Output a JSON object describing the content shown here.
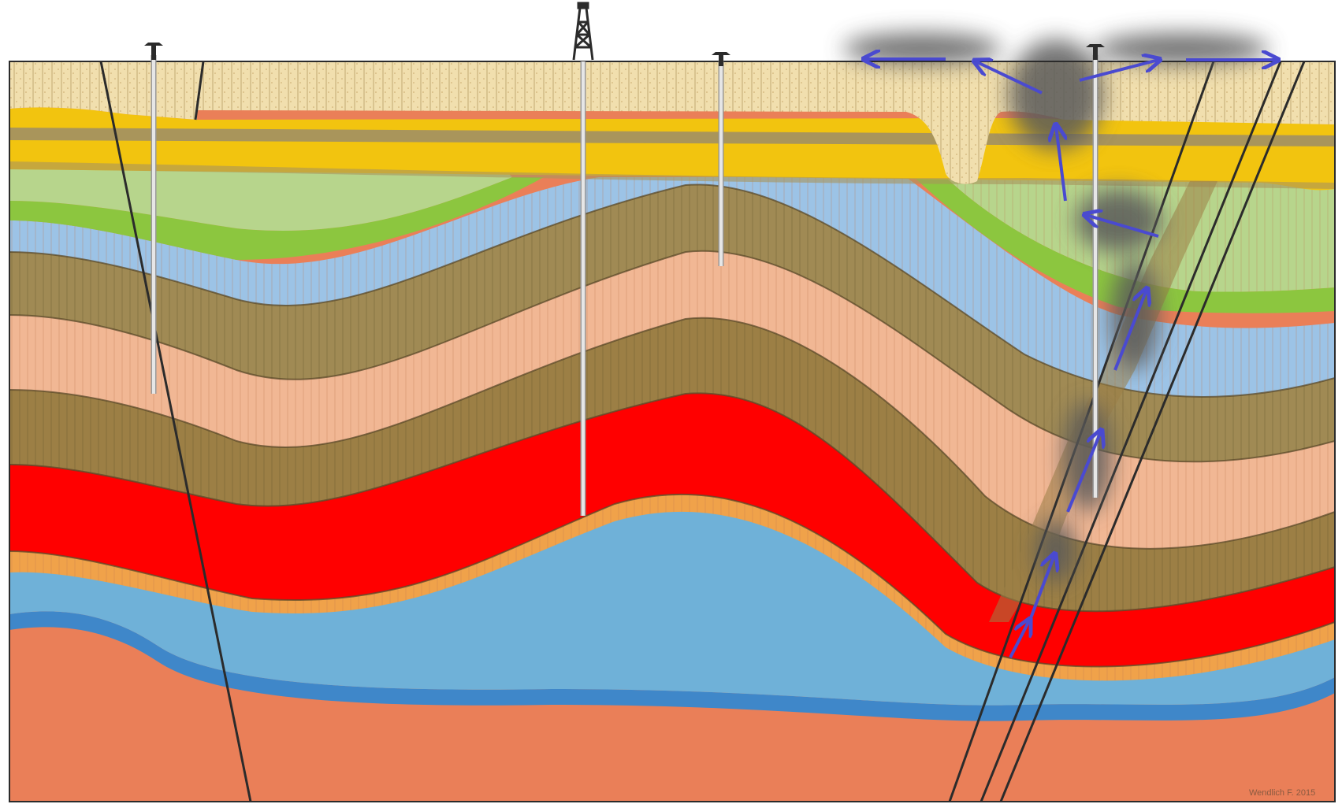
{
  "figure": {
    "signature": "Wendlich F. 2015",
    "colors": {
      "frame": "#2b2b2b",
      "surface_soil": "#f1dfae",
      "topsoil_hatch": "#c9b37c",
      "yellow_sand": "#f2c40f",
      "olive_band": "#a9955b",
      "light_green": "#b7d58c",
      "bright_green": "#8cc63f",
      "light_blue": "#9cc3e6",
      "olive_brown": "#a08a54",
      "salmon": "#f1b794",
      "dark_olive": "#9c7f45",
      "red_reservoir": "#ff0000",
      "orange_thin": "#f0a24a",
      "basin_blue": "#6fb1d8",
      "deep_blue": "#3f87c9",
      "basement": "#ea7f58",
      "casing": "#e6e6e6",
      "migration_arrow": "#4a4ad0",
      "gas_plume": "#5a5a5a"
    }
  },
  "wells": [
    {
      "name": "left well",
      "kind": "pumpjack"
    },
    {
      "name": "central rig",
      "kind": "derrick"
    },
    {
      "name": "mid well",
      "kind": "pumpjack"
    },
    {
      "name": "right well",
      "kind": "pumpjack"
    }
  ],
  "migration": {
    "arrow_count": 10
  }
}
